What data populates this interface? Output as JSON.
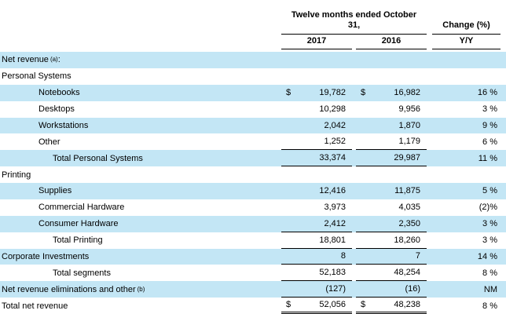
{
  "header": {
    "period_line1": "Twelve months ended October",
    "period_line2": "31,",
    "change_label": "Change (%)",
    "col_2017": "2017",
    "col_2016": "2016",
    "yy_label": "Y/Y"
  },
  "currency_symbol": "$",
  "colors": {
    "row_highlight": "#C3E6F5",
    "text": "#000000",
    "rule_line": "#000000"
  },
  "rows": [
    {
      "label": "Net revenue",
      "sup": "(a)",
      "suffix": " :",
      "indent": 0,
      "shade": "blue"
    },
    {
      "label": "Personal Systems",
      "indent": 0,
      "shade": "white"
    },
    {
      "label": "Notebooks",
      "indent": 1,
      "shade": "blue",
      "dollar": true,
      "v2017": "19,782",
      "v2016": "16,982",
      "change": "16 %"
    },
    {
      "label": "Desktops",
      "indent": 1,
      "shade": "white",
      "v2017": "10,298",
      "v2016": "9,956",
      "change": "3 %"
    },
    {
      "label": "Workstations",
      "indent": 1,
      "shade": "blue",
      "v2017": "2,042",
      "v2016": "1,870",
      "change": "9 %"
    },
    {
      "label": "Other",
      "indent": 1,
      "shade": "white",
      "v2017": "1,252",
      "v2016": "1,179",
      "change": "6 %",
      "rule": true
    },
    {
      "label": "Total Personal Systems",
      "indent": 2,
      "shade": "blue",
      "v2017": "33,374",
      "v2016": "29,987",
      "change": "11 %",
      "rule": true
    },
    {
      "label": "Printing",
      "indent": 0,
      "shade": "white"
    },
    {
      "label": "Supplies",
      "indent": 1,
      "shade": "blue",
      "v2017": "12,416",
      "v2016": "11,875",
      "change": "5 %"
    },
    {
      "label": "Commercial Hardware",
      "indent": 1,
      "shade": "white",
      "v2017": "3,973",
      "v2016": "4,035",
      "change": "(2)%"
    },
    {
      "label": "Consumer Hardware",
      "indent": 1,
      "shade": "blue",
      "v2017": "2,412",
      "v2016": "2,350",
      "change": "3 %",
      "rule": true
    },
    {
      "label": "Total Printing",
      "indent": 2,
      "shade": "white",
      "v2017": "18,801",
      "v2016": "18,260",
      "change": "3 %",
      "rule": true
    },
    {
      "label": "Corporate Investments",
      "indent": 0,
      "shade": "blue",
      "v2017": "8",
      "v2016": "7",
      "change": "14 %",
      "rule": true
    },
    {
      "label": "Total segments",
      "indent": 2,
      "shade": "white",
      "v2017": "52,183",
      "v2016": "48,254",
      "change": "8 %",
      "rule": true
    },
    {
      "label": "Net revenue eliminations and other",
      "sup": "(b)",
      "indent": 0,
      "shade": "blue",
      "v2017": "(127)",
      "v2016": "(16)",
      "change": "NM",
      "rule": true
    },
    {
      "label": "Total net revenue",
      "indent": 0,
      "shade": "white",
      "dollar": true,
      "v2017": "52,056",
      "v2016": "48,238",
      "change": "8 %",
      "double": true
    }
  ]
}
